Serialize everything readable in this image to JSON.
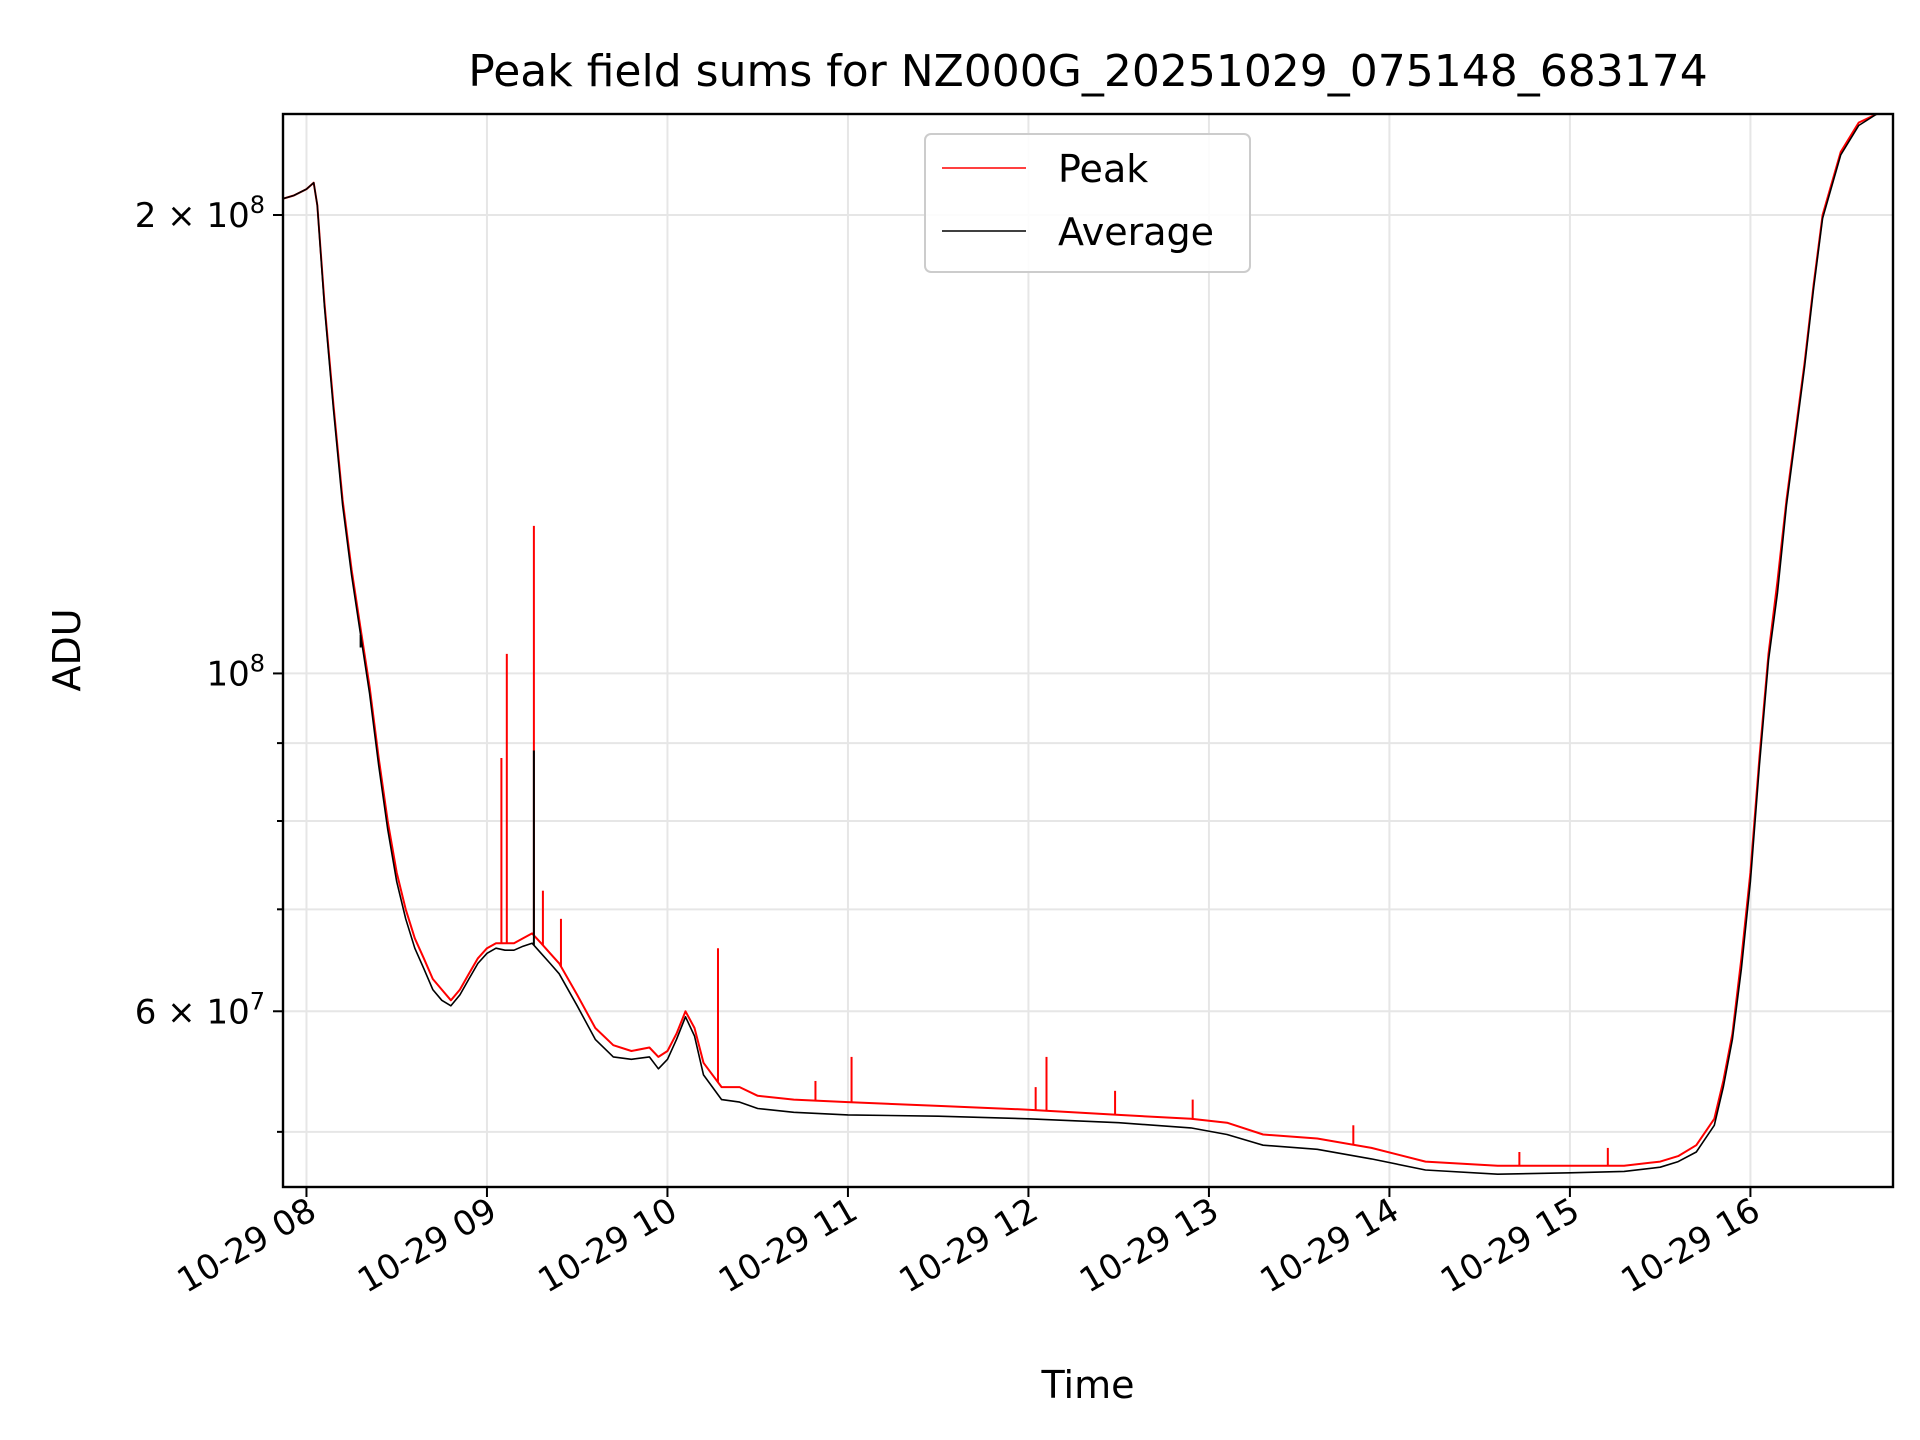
{
  "chart_data": {
    "type": "line",
    "title": "Peak field sums for NZ000G_20251029_075148_683174",
    "xlabel": "Time",
    "ylabel": "ADU",
    "yscale": "log",
    "xlim": [
      7.87,
      16.79
    ],
    "ylim": [
      46000000,
      233000000
    ],
    "grid": true,
    "legend_position": "top-center",
    "x_ticks": [
      {
        "value": 8,
        "label": "10-29 08"
      },
      {
        "value": 9,
        "label": "10-29 09"
      },
      {
        "value": 10,
        "label": "10-29 10"
      },
      {
        "value": 11,
        "label": "10-29 11"
      },
      {
        "value": 12,
        "label": "10-29 12"
      },
      {
        "value": 13,
        "label": "10-29 13"
      },
      {
        "value": 14,
        "label": "10-29 14"
      },
      {
        "value": 15,
        "label": "10-29 15"
      },
      {
        "value": 16,
        "label": "10-29 16"
      }
    ],
    "y_major_ticks": [
      {
        "value": 60000000,
        "base": "6",
        "exp": "7"
      },
      {
        "value": 100000000,
        "base": "10",
        "exp": "8"
      },
      {
        "value": 200000000,
        "base": "2",
        "exp": "8"
      }
    ],
    "y_minor_ticks": [
      50000000,
      70000000,
      80000000,
      90000000
    ],
    "series": [
      {
        "name": "Peak",
        "color": "#ff0000",
        "x": [
          7.87,
          7.93,
          8.0,
          8.04,
          8.06,
          8.1,
          8.15,
          8.2,
          8.25,
          8.3,
          8.35,
          8.4,
          8.45,
          8.5,
          8.55,
          8.6,
          8.65,
          8.7,
          8.75,
          8.8,
          8.85,
          8.9,
          8.95,
          9.0,
          9.05,
          9.1,
          9.15,
          9.2,
          9.25,
          9.3,
          9.35,
          9.4,
          9.5,
          9.6,
          9.7,
          9.8,
          9.9,
          9.95,
          10.0,
          10.05,
          10.1,
          10.15,
          10.2,
          10.3,
          10.4,
          10.5,
          10.7,
          11.0,
          11.5,
          12.0,
          12.5,
          12.9,
          13.1,
          13.3,
          13.6,
          13.9,
          14.2,
          14.6,
          15.0,
          15.3,
          15.5,
          15.6,
          15.7,
          15.8,
          15.85,
          15.9,
          15.95,
          16.0,
          16.05,
          16.1,
          16.15,
          16.2,
          16.3,
          16.35,
          16.4,
          16.5,
          16.6,
          16.7,
          16.79
        ],
        "y": [
          205000000,
          206000000,
          208000000,
          210000000,
          203000000,
          175000000,
          150000000,
          130000000,
          117000000,
          107000000,
          98000000,
          88000000,
          80000000,
          74000000,
          70000000,
          67000000,
          65000000,
          63000000,
          62000000,
          61000000,
          62000000,
          63500000,
          65000000,
          66000000,
          66500000,
          66500000,
          66500000,
          67000000,
          67500000,
          66500000,
          65500000,
          64500000,
          61500000,
          58500000,
          57000000,
          56500000,
          56800000,
          56000000,
          56500000,
          58000000,
          60000000,
          58500000,
          55500000,
          53500000,
          53500000,
          52800000,
          52500000,
          52300000,
          52000000,
          51700000,
          51300000,
          51000000,
          50700000,
          49800000,
          49500000,
          48800000,
          47800000,
          47500000,
          47500000,
          47500000,
          47800000,
          48200000,
          49000000,
          51000000,
          54000000,
          58000000,
          65000000,
          74000000,
          88000000,
          103000000,
          115000000,
          130000000,
          160000000,
          180000000,
          200000000,
          220000000,
          230000000,
          233000000,
          233000000
        ]
      },
      {
        "name": "Average",
        "color": "#000000",
        "x": [
          7.87,
          7.93,
          8.0,
          8.04,
          8.06,
          8.1,
          8.15,
          8.2,
          8.25,
          8.3,
          8.35,
          8.4,
          8.45,
          8.5,
          8.55,
          8.6,
          8.65,
          8.7,
          8.75,
          8.8,
          8.85,
          8.9,
          8.95,
          9.0,
          9.05,
          9.1,
          9.15,
          9.2,
          9.25,
          9.3,
          9.35,
          9.4,
          9.5,
          9.6,
          9.7,
          9.8,
          9.9,
          9.95,
          10.0,
          10.05,
          10.1,
          10.15,
          10.2,
          10.3,
          10.4,
          10.5,
          10.7,
          11.0,
          11.5,
          12.0,
          12.5,
          12.9,
          13.1,
          13.3,
          13.6,
          13.9,
          14.2,
          14.6,
          15.0,
          15.3,
          15.5,
          15.6,
          15.7,
          15.8,
          15.85,
          15.9,
          15.95,
          16.0,
          16.05,
          16.1,
          16.15,
          16.2,
          16.3,
          16.35,
          16.4,
          16.5,
          16.6,
          16.7,
          16.79
        ],
        "y": [
          205000000,
          206000000,
          208000000,
          210000000,
          203000000,
          174000000,
          149000000,
          129000000,
          116000000,
          106000000,
          97000000,
          87000000,
          79000000,
          73000000,
          69000000,
          66000000,
          64000000,
          62000000,
          61000000,
          60500000,
          61500000,
          63000000,
          64500000,
          65500000,
          66000000,
          65800000,
          65800000,
          66200000,
          66500000,
          65500000,
          64500000,
          63500000,
          60500000,
          57500000,
          56000000,
          55800000,
          56000000,
          55000000,
          55800000,
          57500000,
          59500000,
          57800000,
          54500000,
          52500000,
          52300000,
          51800000,
          51500000,
          51300000,
          51200000,
          51000000,
          50700000,
          50300000,
          49800000,
          49000000,
          48700000,
          48000000,
          47200000,
          46900000,
          47000000,
          47100000,
          47400000,
          47800000,
          48500000,
          50500000,
          53500000,
          57500000,
          64000000,
          73000000,
          87000000,
          102000000,
          113000000,
          129000000,
          159000000,
          179000000,
          199000000,
          219000000,
          229000000,
          233000000,
          233000000
        ]
      }
    ],
    "spikes": [
      {
        "series": "Peak",
        "x": 9.08,
        "y": 88000000
      },
      {
        "series": "Peak",
        "x": 9.11,
        "y": 103000000
      },
      {
        "series": "Peak",
        "x": 9.26,
        "y": 125000000
      },
      {
        "series": "Peak",
        "x": 9.31,
        "y": 72000000
      },
      {
        "series": "Peak",
        "x": 9.41,
        "y": 69000000
      },
      {
        "series": "Peak",
        "x": 10.28,
        "y": 66000000
      },
      {
        "series": "Peak",
        "x": 10.82,
        "y": 54000000
      },
      {
        "series": "Peak",
        "x": 11.02,
        "y": 56000000
      },
      {
        "series": "Peak",
        "x": 12.04,
        "y": 53500000
      },
      {
        "series": "Peak",
        "x": 12.1,
        "y": 56000000
      },
      {
        "series": "Peak",
        "x": 12.48,
        "y": 53200000
      },
      {
        "series": "Peak",
        "x": 12.91,
        "y": 52500000
      },
      {
        "series": "Peak",
        "x": 13.8,
        "y": 50500000
      },
      {
        "series": "Peak",
        "x": 14.72,
        "y": 48500000
      },
      {
        "series": "Peak",
        "x": 15.21,
        "y": 48800000
      },
      {
        "series": "Average",
        "x": 9.26,
        "y": 89000000
      },
      {
        "series": "Average",
        "x": 8.3,
        "y": 104000000
      }
    ],
    "legend": [
      {
        "label": "Peak",
        "color": "#ff0000"
      },
      {
        "label": "Average",
        "color": "#000000"
      }
    ]
  }
}
